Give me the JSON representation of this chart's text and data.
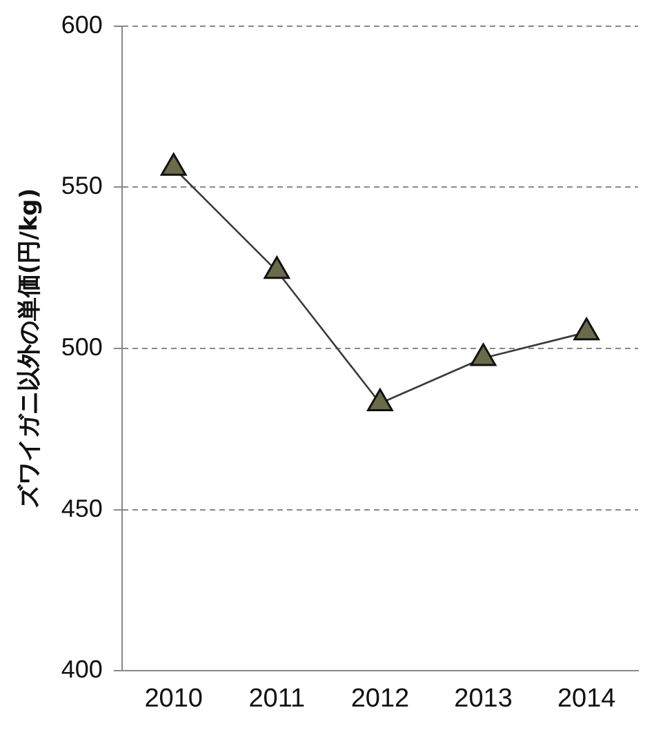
{
  "chart_data": {
    "type": "line",
    "ylabel": "ズワイガニ以外の単価(円/kg)",
    "categories": [
      "2010",
      "2011",
      "2012",
      "2013",
      "2014"
    ],
    "series": [
      {
        "color": "#6b6b4c",
        "values": [
          556,
          524,
          483,
          497,
          505
        ]
      }
    ],
    "ylim": [
      400,
      600
    ],
    "yticks": [
      400,
      450,
      500,
      550,
      600
    ],
    "grid": "y",
    "legend": false,
    "marker": "triangle",
    "line_style": "solid"
  }
}
